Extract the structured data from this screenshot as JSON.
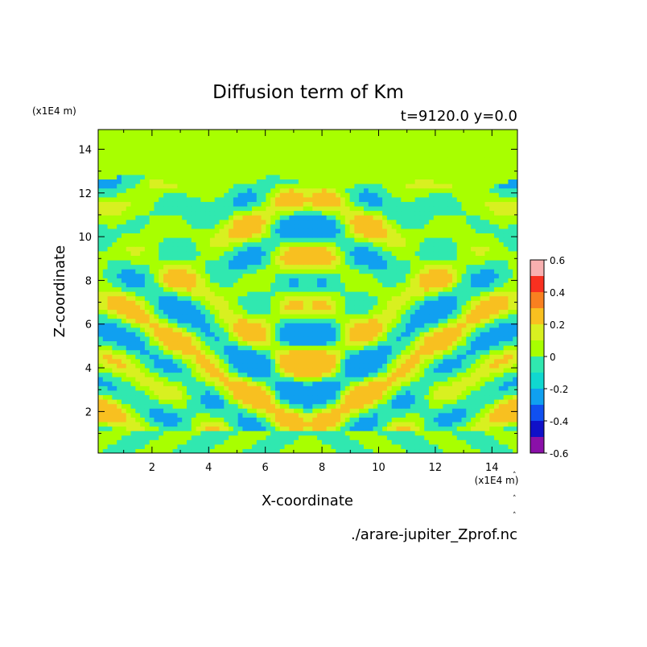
{
  "chart_data": {
    "type": "heatmap",
    "title": "Diffusion term of Km",
    "subtitle": "t=9120.0 y=0.0",
    "xlabel": "X-coordinate",
    "ylabel": "Z-coordinate",
    "x_unit": "(x1E4 m)",
    "y_unit": "(x1E4 m)",
    "xlim": [
      0.1,
      14.9
    ],
    "ylim": [
      0.1,
      14.9
    ],
    "x_ticks": [
      "2",
      "4",
      "6",
      "8",
      "10",
      "12",
      "14"
    ],
    "y_ticks": [
      "2",
      "4",
      "6",
      "8",
      "10",
      "12",
      "14"
    ],
    "grid": false,
    "source_file": "./arare-jupiter_Zprof.nc",
    "colorbar": {
      "levels": [
        -0.6,
        -0.5,
        -0.4,
        -0.3,
        -0.2,
        -0.1,
        0,
        0.1,
        0.2,
        0.3,
        0.4,
        0.5,
        0.6
      ],
      "tick_labels": [
        "0.6",
        "0.4",
        "0.2",
        "0",
        "-0.2",
        "-0.4",
        "-0.6"
      ],
      "colors": [
        "#8a10a8",
        "#1010c8",
        "#1050f0",
        "#10a0f0",
        "#10d8d0",
        "#30e8b0",
        "#a8ff00",
        "#d8f020",
        "#f8c020",
        "#f88020",
        "#f83020",
        "#f8b0b0"
      ],
      "placement": "right"
    },
    "field_description": {
      "upper_region_value": 0.02,
      "upper_region_zmin": 12.5,
      "pattern": "mirror-symmetric about x=7.5",
      "dominant_values": [
        -0.05,
        0.05
      ]
    }
  }
}
